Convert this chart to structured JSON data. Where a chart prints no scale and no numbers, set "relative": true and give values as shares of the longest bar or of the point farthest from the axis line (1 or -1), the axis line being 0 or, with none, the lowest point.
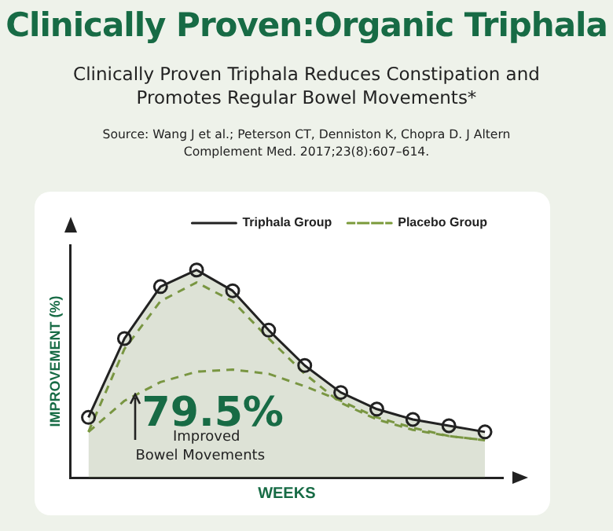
{
  "chart_data": {
    "type": "line",
    "title": "Clinically Proven:Organic Triphala",
    "subtitle": "Clinically Proven Triphala Reduces Constipation and Promotes Regular Bowel Movements*",
    "xlabel": "WEEKS",
    "ylabel": "IMPROVEMENT (%)",
    "relative": true,
    "grid": false,
    "legend": "top right",
    "annotations": [
      "Source: Wang J et al.; Peterson CT, Denniston K, Chopra D. J Altern Complement Med. 2017;23(8):607–614.",
      "79.5%",
      "Improved Bowel Movements"
    ],
    "categories": [
      null,
      null,
      null,
      null,
      null,
      null,
      null,
      null,
      null,
      null,
      null,
      null
    ],
    "series": [
      {
        "name": "Triphala Group",
        "type": "area",
        "color": "#222222",
        "marker": "circle",
        "line_style": "solid",
        "values": [
          0.29,
          0.67,
          0.92,
          1,
          0.9,
          0.71,
          0.54,
          0.41,
          0.33,
          0.28,
          0.25,
          0.22
        ]
      },
      {
        "name": "Placebo Group",
        "color": "#7a9a3a",
        "marker": "none",
        "line_style": "dashed",
        "values": [
          0.22,
          0.62,
          0.85,
          0.94,
          0.85,
          0.67,
          0.5,
          0.36,
          0.28,
          0.23,
          0.2,
          0.18
        ]
      },
      {
        "color": "#7a9a3a",
        "marker": "none",
        "line_style": "dashed",
        "values": [
          0.22,
          0.37,
          0.46,
          0.51,
          0.52,
          0.5,
          0.44,
          0.37,
          0.29,
          0.24,
          0.2,
          0.18
        ]
      }
    ]
  }
}
